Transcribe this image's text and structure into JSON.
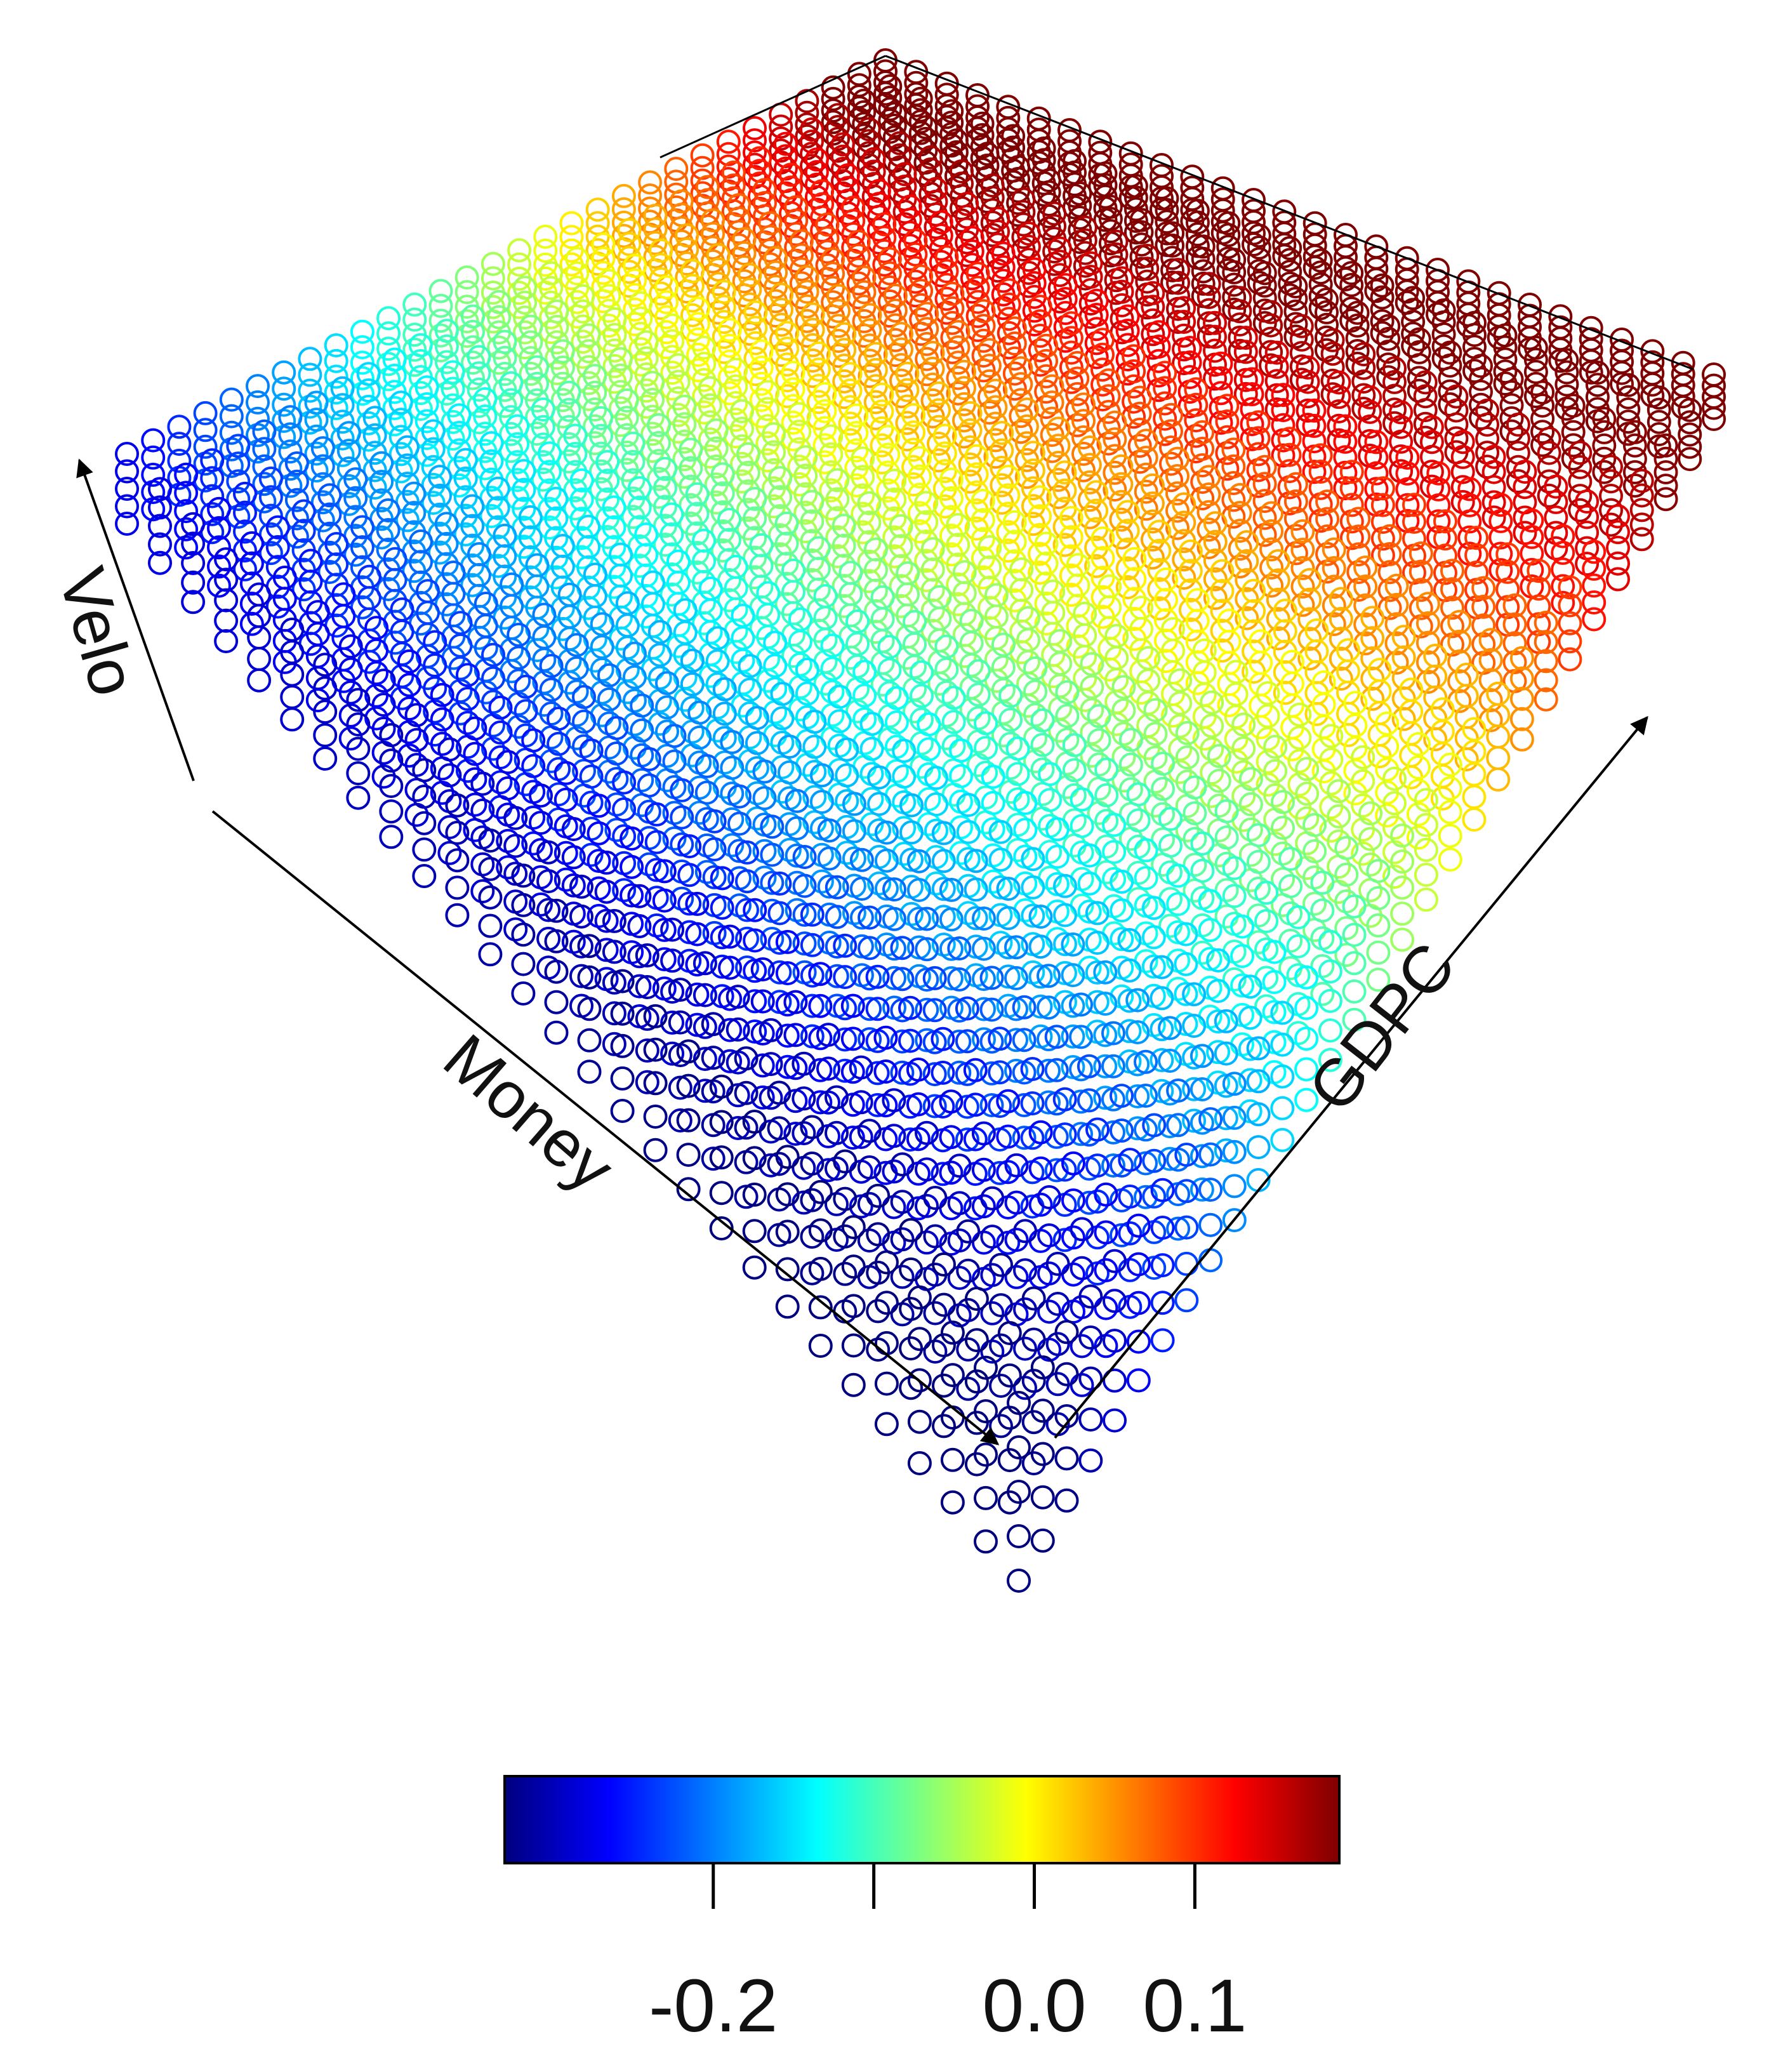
{
  "chart_data": {
    "type": "scatter",
    "subtype": "3d-scatter-surface",
    "title": "",
    "axes": {
      "x": {
        "label": "Money"
      },
      "y": {
        "label": "GDPC"
      },
      "z": {
        "label": "Velo"
      }
    },
    "color_variable": {
      "label": "",
      "range": [
        -0.33,
        0.19
      ],
      "ticks": [
        -0.2,
        -0.1,
        0.0,
        0.1
      ],
      "tick_labels": [
        "-0.2",
        "",
        "0.0",
        "0.1"
      ]
    },
    "colormap": [
      "#00007f",
      "#0000ff",
      "#007fff",
      "#00ffff",
      "#7fff7f",
      "#ffff00",
      "#ff7f00",
      "#ff0000",
      "#7f0000"
    ],
    "grid": {
      "n_money": 28,
      "n_gdpc": 30
    },
    "marker": "open-circle",
    "trend": "value increases with GDPC and Velo; lowest (≈ -0.3) at high Money / low GDPC / low Velo corner, highest (≈ 0.18) at high GDPC / high Velo corner"
  }
}
